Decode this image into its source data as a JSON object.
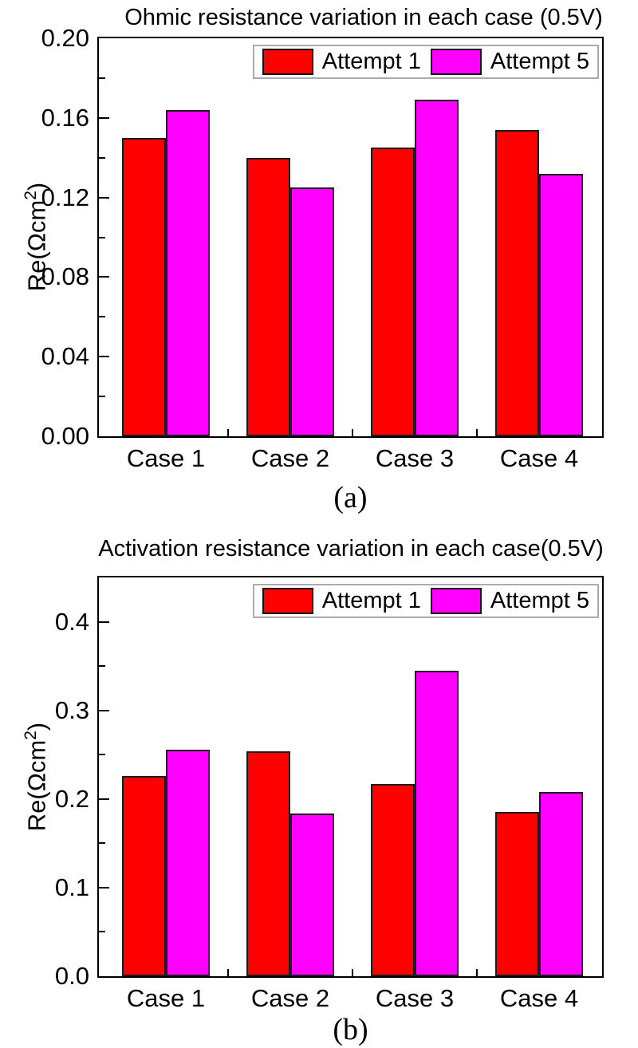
{
  "figure": {
    "background": "#ffffff",
    "text_color": "#000000",
    "bar_outline_color": "#1c1c1c",
    "legend_border_color": "#ababab"
  },
  "chart_data": [
    {
      "type": "bar",
      "panel": "a",
      "title": "Ohmic resistance variation in each case (0.5V)",
      "sublabel": "(a)",
      "ylabel": {
        "prefix": "Re(Ωcm",
        "sup": "2",
        "suffix": ")"
      },
      "xlabel": "",
      "categories": [
        "Case 1",
        "Case 2",
        "Case 3",
        "Case 4"
      ],
      "series": [
        {
          "name": "Attempt 1",
          "color": "#ff0000",
          "values": [
            0.15,
            0.14,
            0.145,
            0.154
          ]
        },
        {
          "name": "Attempt 5",
          "color": "#ff00ff",
          "values": [
            0.164,
            0.125,
            0.169,
            0.132
          ]
        }
      ],
      "ylim": [
        0,
        0.2
      ],
      "ytick_step": 0.04,
      "yminor_step": 0.02,
      "ytick_decimals": 2,
      "ytick_labels": [
        "0.00",
        "0.04",
        "0.08",
        "0.12",
        "0.16",
        "0.20"
      ],
      "grid": false,
      "legend_position": "top-right",
      "legend_labels": [
        "Attempt 1",
        "Attempt 5"
      ]
    },
    {
      "type": "bar",
      "panel": "b",
      "title": "Activation resistance variation in each case(0.5V)",
      "sublabel": "(b)",
      "ylabel": {
        "prefix": "Re(Ωcm",
        "sup": "2",
        "suffix": ")"
      },
      "xlabel": "",
      "categories": [
        "Case 1",
        "Case 2",
        "Case 3",
        "Case 4"
      ],
      "series": [
        {
          "name": "Attempt 1",
          "color": "#ff0000",
          "values": [
            0.226,
            0.254,
            0.217,
            0.185
          ]
        },
        {
          "name": "Attempt 5",
          "color": "#ff00ff",
          "values": [
            0.256,
            0.184,
            0.345,
            0.208
          ]
        }
      ],
      "ylim": [
        0,
        0.45
      ],
      "ytick_step": 0.1,
      "yminor_step": 0.05,
      "ytick_decimals": 1,
      "ytick_labels": [
        "0.0",
        "0.1",
        "0.2",
        "0.3",
        "0.4"
      ],
      "grid": false,
      "legend_position": "top-right",
      "legend_labels": [
        "Attempt 1",
        "Attempt 5"
      ]
    }
  ]
}
